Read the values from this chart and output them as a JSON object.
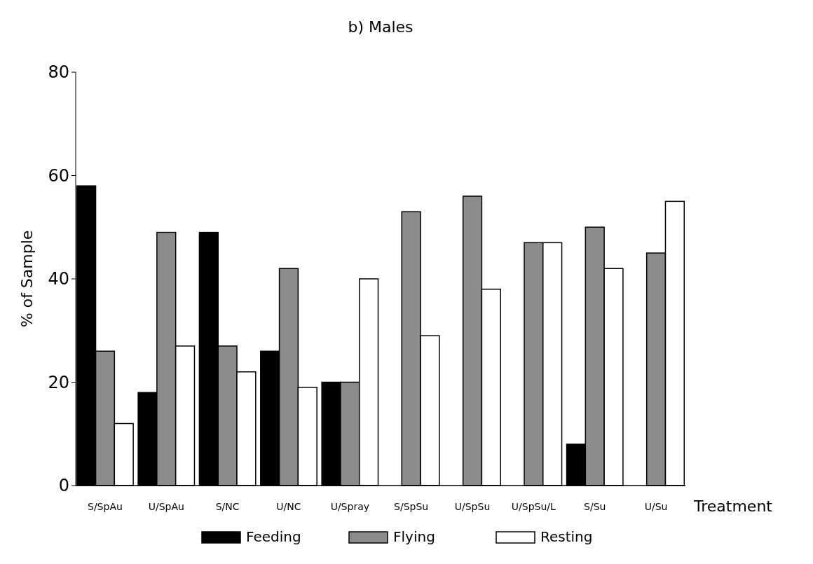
{
  "chart_data": {
    "type": "bar",
    "title": "b) Males",
    "xlabel": "Treatment",
    "ylabel": "% of Sample",
    "categories": [
      "S/SpAu",
      "U/SpAu",
      "S/NC",
      "U/NC",
      "U/Spray",
      "S/SpSu",
      "U/SpSu",
      "U/SpSu/L",
      "S/Su",
      "U/Su"
    ],
    "series": [
      {
        "name": "Feeding",
        "color": "#000000",
        "values": [
          58,
          18,
          49,
          26,
          20,
          0,
          0,
          0,
          8,
          0
        ]
      },
      {
        "name": "Flying",
        "color": "#8c8c8c",
        "values": [
          26,
          49,
          27,
          42,
          20,
          53,
          56,
          47,
          50,
          45
        ]
      },
      {
        "name": "Resting",
        "color": "#ffffff",
        "values": [
          12,
          27,
          22,
          19,
          40,
          29,
          38,
          47,
          42,
          55
        ]
      }
    ],
    "ylim": [
      0,
      80
    ],
    "yticks": [
      0,
      20,
      40,
      60,
      80
    ],
    "grid": false,
    "legend": "bottom"
  }
}
